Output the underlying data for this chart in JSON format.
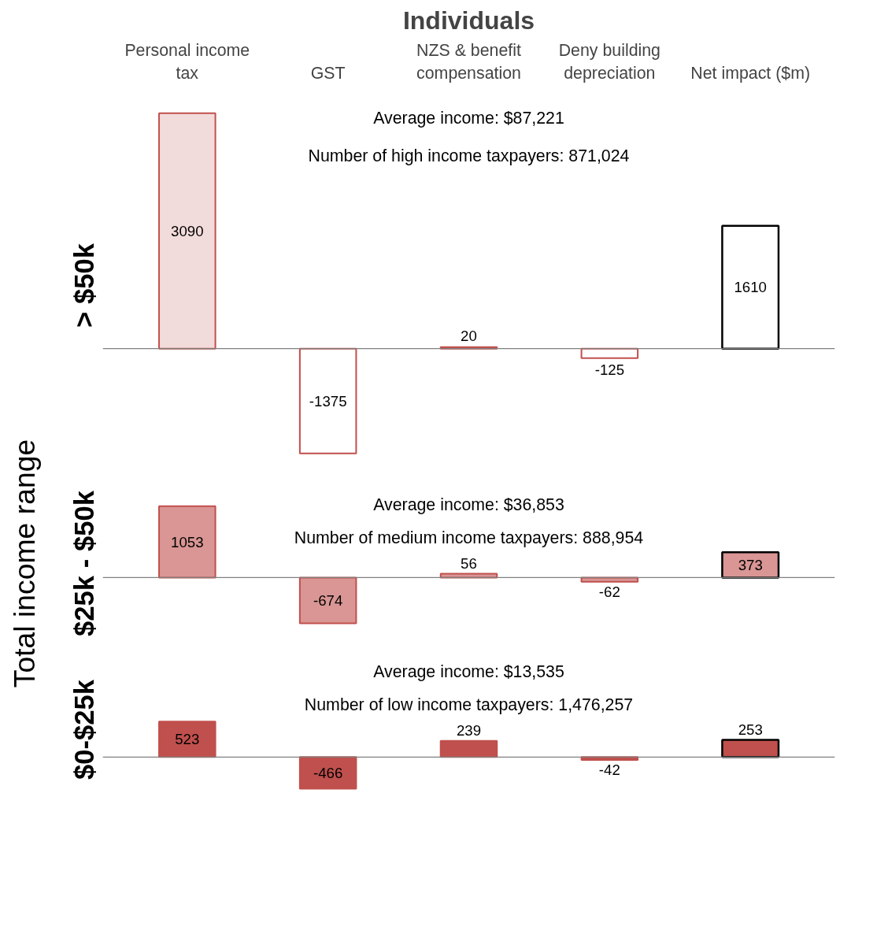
{
  "chart_data": [
    {
      "type": "bar",
      "title": "Individuals",
      "subtitle": "> $50k",
      "categories": [
        "Personal income tax",
        "GST",
        "NZS & benefit compensation",
        "Deny building depreciation",
        "Net impact ($m)"
      ],
      "values": [
        3090,
        -1375,
        20,
        -125,
        1610
      ],
      "colors": [
        "#f2dcdb",
        "#ffffff",
        "#f2dcdb",
        "#ffffff",
        "#ffffff"
      ],
      "data_labels": true,
      "tick_labels": "x",
      "annotations": [
        "Average income: $87,221",
        "Number of high income taxpayers: 871,024"
      ]
    },
    {
      "type": "bar",
      "subtitle": "$25k - $50k",
      "ylabel": "Total income range",
      "categories": [
        "Personal income tax",
        "GST",
        "NZS & benefit compensation",
        "Deny building depreciation",
        "Net impact ($m)"
      ],
      "values": [
        1053,
        -674,
        56,
        -62,
        373
      ],
      "colors": [
        "#d99694",
        "#d99694",
        "#d99694",
        "#d99694",
        "#d99694"
      ],
      "data_labels": true,
      "tick_labels": false,
      "annotations": [
        "Average income: $36,853",
        "Number of medium income taxpayers: 888,954"
      ]
    },
    {
      "type": "bar",
      "subtitle": "$0-$25k",
      "categories": [
        "Personal income tax",
        "GST",
        "NZS & benefit compensation",
        "Deny building depreciation",
        "Net impact ($m)"
      ],
      "values": [
        523,
        -466,
        239,
        -42,
        253
      ],
      "colors": [
        "#c0504d",
        "#c0504d",
        "#c0504d",
        "#c0504d",
        "#c0504d"
      ],
      "data_labels": true,
      "tick_labels": false,
      "annotations": [
        "Average income: $13,535",
        "Number of low income taxpayers: 1,476,257"
      ]
    }
  ]
}
